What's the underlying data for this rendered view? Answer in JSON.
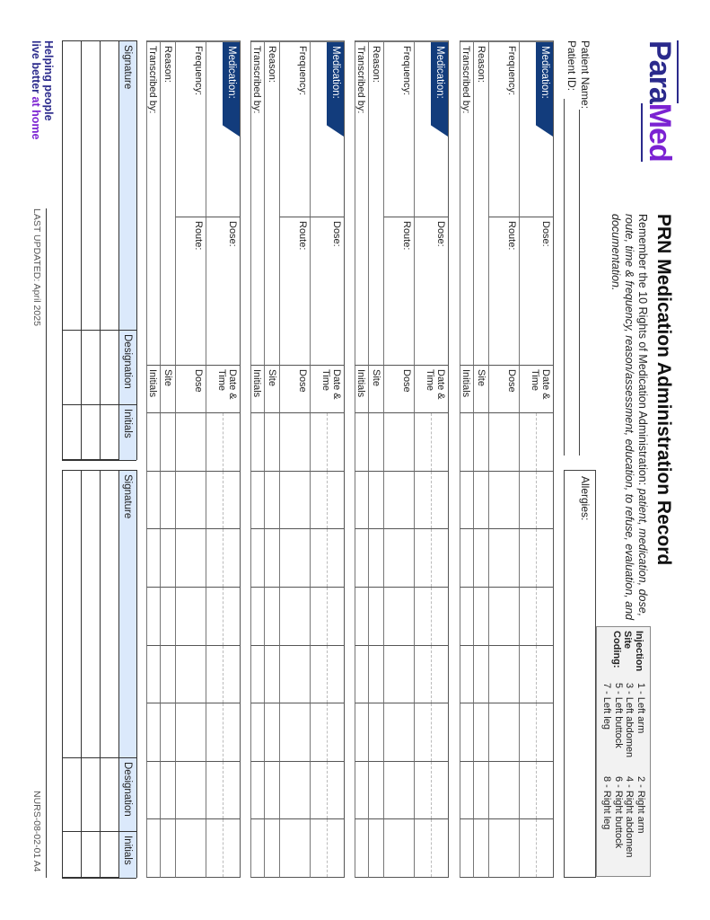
{
  "logo": {
    "part1": "Para",
    "part2": "Med"
  },
  "title": "PRN Medication Administration Record",
  "subtitle": {
    "plain": "Remember the 10 Rights of Medication Administration: ",
    "italic": "patient, medication, dose, route, time & frequency, reason/assessment, education, to refuse, evaluation, and documentation."
  },
  "injection": {
    "label_lines": [
      "Injection",
      "Site",
      "Coding:"
    ],
    "codes": [
      "1 - Left arm",
      "2 - Right arm",
      "3 - Left abdomen",
      "4 - Right abdomen",
      "5 - Left buttock",
      "6 - Right buttock",
      "7 - Left leg",
      "8 - Right leg"
    ]
  },
  "patient": {
    "name_label": "Patient Name:",
    "id_label": "Patient ID:",
    "allergies_label": "Allergies:"
  },
  "labels": {
    "medication": "Medication:",
    "dose": "Dose:",
    "date_time_1": "Date &",
    "date_time_2": "Time",
    "frequency": "Frequency:",
    "route": "Route:",
    "dose_row": "Dose",
    "reason": "Reason:",
    "site": "Site",
    "transcribed_by": "Transcribed by:",
    "initials": "Initials"
  },
  "medication_block_count": 4,
  "administration_columns": 8,
  "signature_table": {
    "headers": [
      "Signature",
      "Designation",
      "Initials"
    ],
    "rows": 3
  },
  "footer": {
    "tagline_1": "Helping people",
    "tagline_2a": "live better ",
    "tagline_2b": "at home",
    "last_updated": "LAST UPDATED: April 2025",
    "form_code": "NURS-08-02-01 A4"
  },
  "colors": {
    "navy": "#123c7c",
    "logo_navy": "#2b2a8c",
    "logo_purple": "#7b22d2",
    "header_blue": "#dbe9fb",
    "coding_gray": "#f2f2f2"
  }
}
